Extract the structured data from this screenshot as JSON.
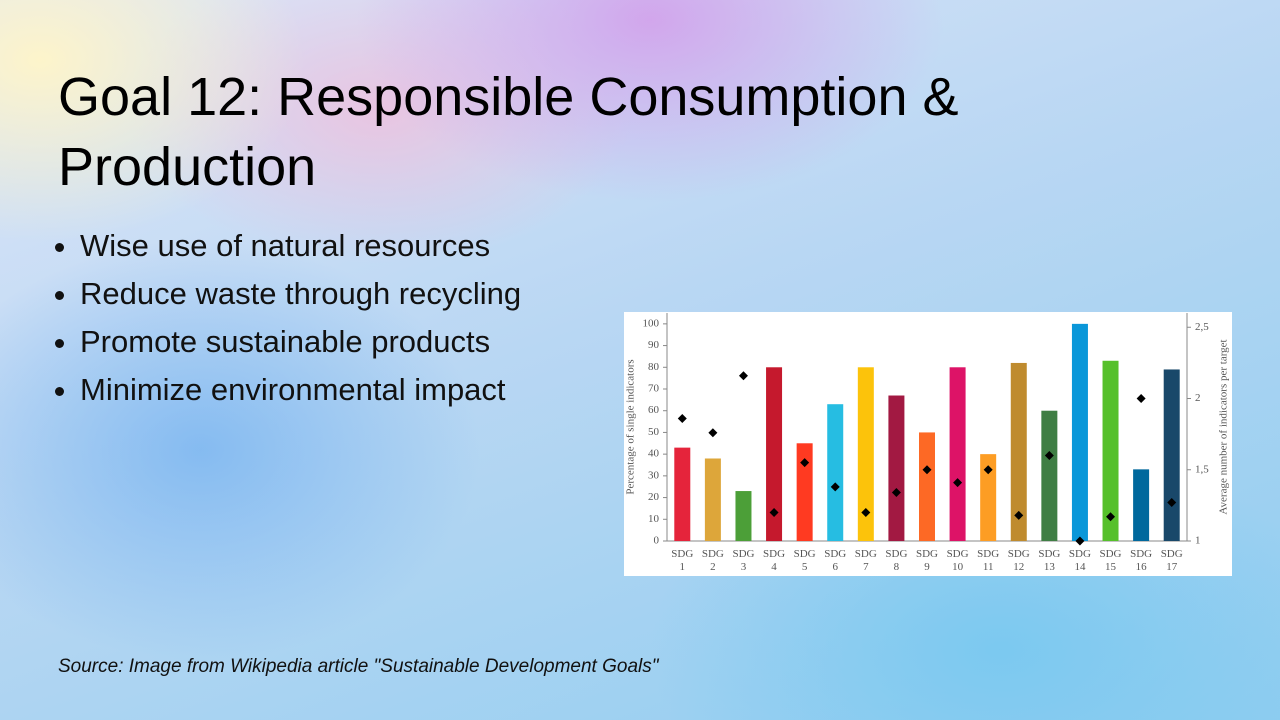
{
  "slide": {
    "title": "Goal 12: Responsible Consumption & Production",
    "bullets": [
      "Wise use of natural resources",
      "Reduce waste through recycling",
      "Promote sustainable products",
      "Minimize environmental impact"
    ],
    "source": "Source: Image from Wikipedia article \"Sustainable Development Goals\""
  },
  "chart_data": {
    "type": "bar",
    "categories": [
      "SDG 1",
      "SDG 2",
      "SDG 3",
      "SDG 4",
      "SDG 5",
      "SDG 6",
      "SDG 7",
      "SDG 8",
      "SDG 9",
      "SDG 10",
      "SDG 11",
      "SDG 12",
      "SDG 13",
      "SDG 14",
      "SDG 15",
      "SDG 16",
      "SDG 17"
    ],
    "y_label": "Percentage of single indicators",
    "y2_label": "Average number of indicators per target",
    "ylim": [
      0,
      105
    ],
    "yticks": [
      0,
      10,
      20,
      30,
      40,
      50,
      60,
      70,
      80,
      90,
      100
    ],
    "y2lim": [
      1,
      2.6
    ],
    "y2ticks": [
      1,
      {
        "value": 1.5,
        "label": "1,5"
      },
      2,
      {
        "value": 2.5,
        "label": "2,5"
      }
    ],
    "series": [
      {
        "type": "bar",
        "colors": [
          "#E5243B",
          "#DDA63A",
          "#4C9F38",
          "#C5192D",
          "#FF3A21",
          "#26BDE2",
          "#FCC30B",
          "#A21942",
          "#FD6925",
          "#DD1367",
          "#FD9D24",
          "#BF8B2E",
          "#3F7E44",
          "#0A97D9",
          "#56C02B",
          "#00689D",
          "#19486A"
        ],
        "values": [
          43,
          38,
          23,
          80,
          45,
          63,
          80,
          67,
          50,
          80,
          40,
          82,
          60,
          100,
          83,
          33,
          79
        ]
      },
      {
        "type": "scatter",
        "axis": "y2",
        "color": "#000000",
        "values": [
          1.86,
          1.76,
          2.16,
          1.2,
          1.55,
          1.38,
          1.2,
          1.34,
          1.5,
          1.41,
          1.5,
          1.18,
          1.6,
          1.0,
          1.17,
          2.0,
          1.27
        ]
      }
    ]
  }
}
